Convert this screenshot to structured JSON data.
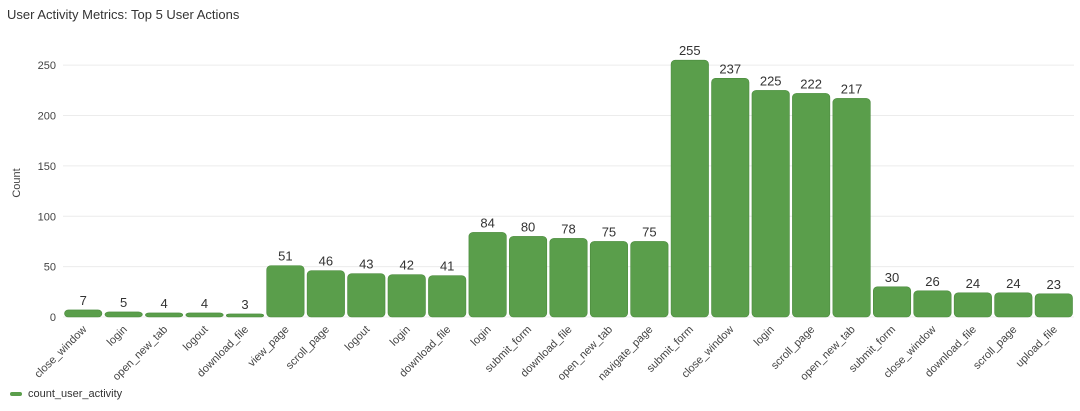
{
  "title": "User Activity Metrics: Top 5 User Actions",
  "colors": {
    "bar": "#5a9e4b",
    "bar_stroke": "#4a8a3c",
    "grid": "#ececec"
  },
  "chart_data": {
    "type": "bar",
    "ylabel": "Count",
    "xlabel": "",
    "ylim": [
      0,
      275
    ],
    "yticks": [
      0,
      50,
      100,
      150,
      200,
      250
    ],
    "grid": true,
    "legend_position": "bottom-left",
    "categories": [
      "close_window",
      "login",
      "open_new_tab",
      "logout",
      "download_file",
      "view_page",
      "scroll_page",
      "logout",
      "login",
      "download_file",
      "login",
      "submit_form",
      "download_file",
      "open_new_tab",
      "navigate_page",
      "submit_form",
      "close_window",
      "login",
      "scroll_page",
      "open_new_tab",
      "submit_form",
      "close_window",
      "download_file",
      "scroll_page",
      "upload_file"
    ],
    "series": [
      {
        "name": "count_user_activity",
        "values": [
          7,
          5,
          4,
          4,
          3,
          51,
          46,
          43,
          42,
          41,
          84,
          80,
          78,
          75,
          75,
          255,
          237,
          225,
          222,
          217,
          30,
          26,
          24,
          24,
          23
        ]
      }
    ]
  }
}
